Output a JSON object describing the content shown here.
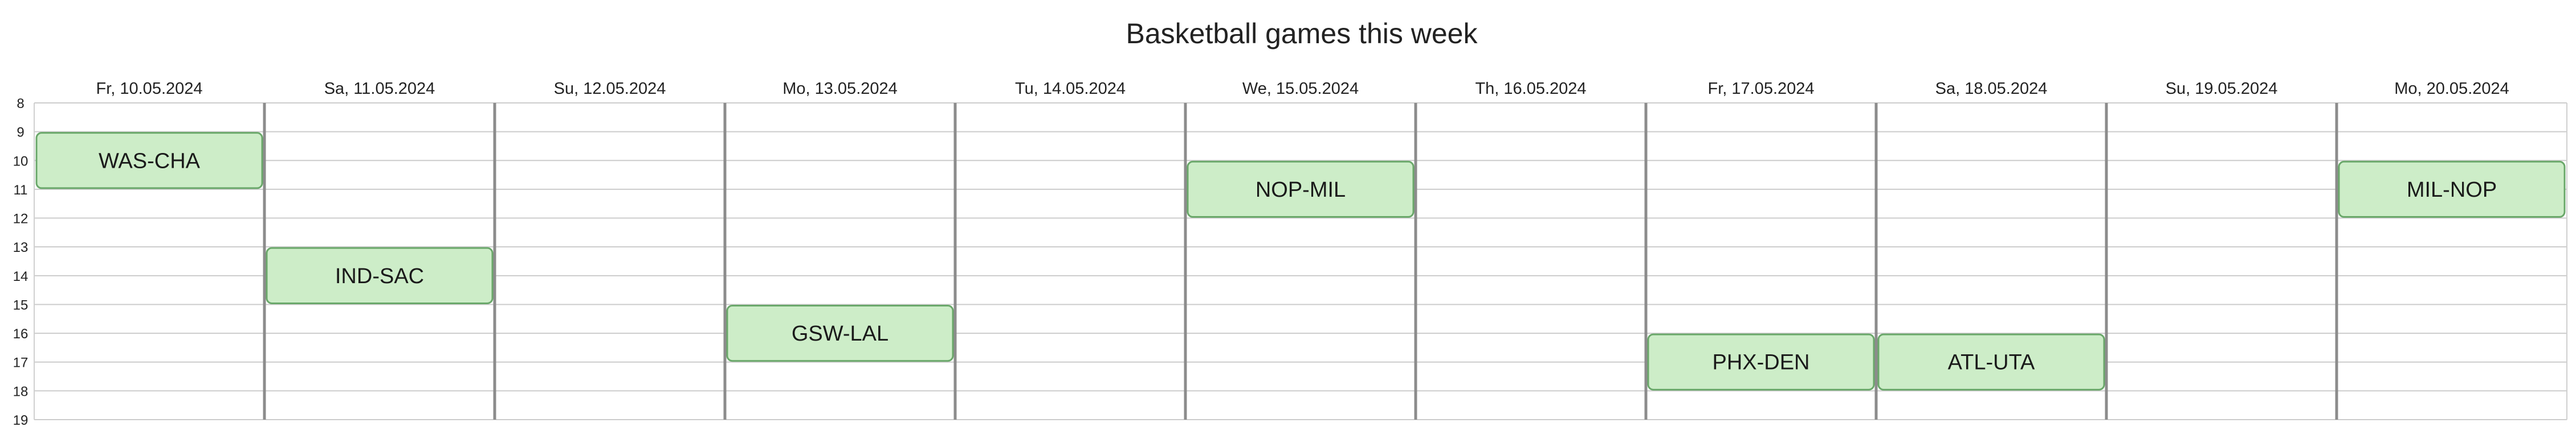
{
  "chart_data": {
    "type": "calendar",
    "title": "Basketball games this week",
    "days": [
      "Fr, 10.05.2024",
      "Sa, 11.05.2024",
      "Su, 12.05.2024",
      "Mo, 13.05.2024",
      "Tu, 14.05.2024",
      "We, 15.05.2024",
      "Th, 16.05.2024",
      "Fr, 17.05.2024",
      "Sa, 18.05.2024",
      "Su, 19.05.2024",
      "Mo, 20.05.2024"
    ],
    "hours": [
      "8",
      "9",
      "10",
      "11",
      "12",
      "13",
      "14",
      "15",
      "16",
      "17",
      "18",
      "19"
    ],
    "hour_range": [
      8,
      19
    ],
    "events": [
      {
        "label": "WAS-CHA",
        "day": 0,
        "start": 9,
        "end": 11
      },
      {
        "label": "IND-SAC",
        "day": 1,
        "start": 13,
        "end": 15
      },
      {
        "label": "GSW-LAL",
        "day": 3,
        "start": 15,
        "end": 17
      },
      {
        "label": "NOP-MIL",
        "day": 5,
        "start": 10,
        "end": 12
      },
      {
        "label": "PHX-DEN",
        "day": 7,
        "start": 16,
        "end": 18
      },
      {
        "label": "ATL-UTA",
        "day": 8,
        "start": 16,
        "end": 18
      },
      {
        "label": "MIL-NOP",
        "day": 10,
        "start": 10,
        "end": 12
      }
    ],
    "colors": {
      "event_fill": "#cdedc8",
      "event_stroke": "#6aa86a"
    }
  }
}
